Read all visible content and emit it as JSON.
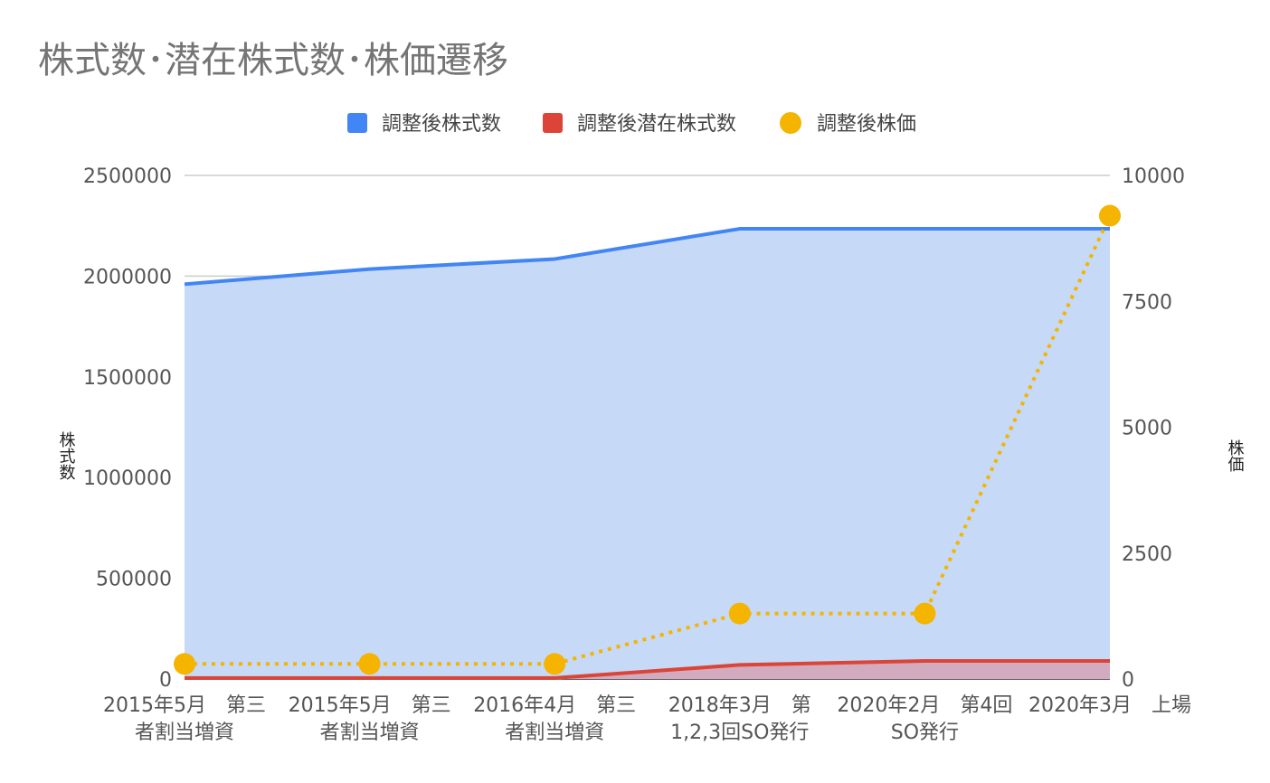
{
  "chart_data": {
    "type": "line",
    "title": "株式数･潜在株式数･株価遷移",
    "categories": [
      [
        "2015年5月　第三",
        "者割当増資"
      ],
      [
        "2015年5月　第三",
        "者割当増資"
      ],
      [
        "2016年4月　第三",
        "者割当増資"
      ],
      [
        "2018年3月　第",
        "1,2,3回SO発行"
      ],
      [
        "2020年2月　第4回",
        "SO発行"
      ],
      [
        "2020年3月　上場",
        ""
      ]
    ],
    "series": [
      {
        "name": "調整後株式数",
        "type": "area",
        "axis": "left",
        "color": "#4285f4",
        "fill": "#c6d9f6",
        "values": [
          1960000,
          2035000,
          2085000,
          2235000,
          2235000,
          2235000
        ]
      },
      {
        "name": "調整後潜在株式数",
        "type": "area",
        "axis": "left",
        "color": "#db4437",
        "fill": "#d2abbe",
        "values": [
          5000,
          5000,
          5000,
          70000,
          90000,
          90000
        ]
      },
      {
        "name": "調整後株価",
        "type": "dotted-line",
        "axis": "right",
        "color": "#f4b400",
        "values": [
          300,
          300,
          300,
          1300,
          1300,
          9200
        ]
      }
    ],
    "y_left": {
      "label": "株式数",
      "min": 0,
      "max": 2500000,
      "ticks": [
        "2500000",
        "2000000",
        "1500000",
        "1000000",
        "500000",
        "0"
      ]
    },
    "y_right": {
      "label": "株価",
      "min": 0,
      "max": 10000,
      "ticks": [
        "10000",
        "7500",
        "5000",
        "2500",
        "0"
      ]
    },
    "legend_position": "top-center",
    "grid": true
  }
}
